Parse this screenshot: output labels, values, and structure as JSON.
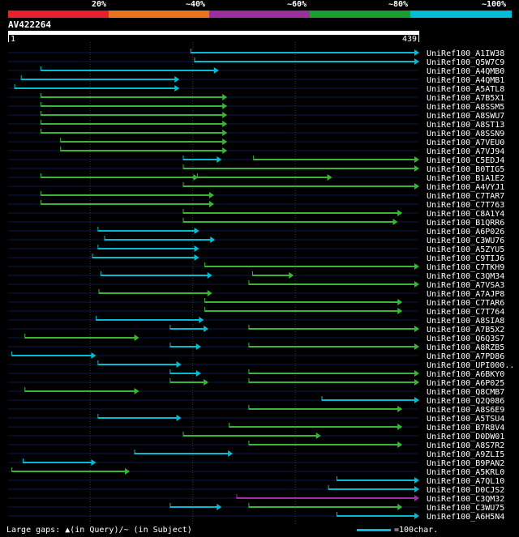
{
  "legend": {
    "items": [
      {
        "label": "20%",
        "color": "#e8202a"
      },
      {
        "label": "~40%",
        "color": "#e87420"
      },
      {
        "label": "~60%",
        "color": "#9c2fa0"
      },
      {
        "label": "~80%",
        "color": "#1aa02a"
      },
      {
        "label": "~100%",
        "color": "#00bcd4"
      }
    ]
  },
  "query": {
    "name": "AV422264",
    "start_label": "1",
    "end_label": "439",
    "length": 439
  },
  "colors": {
    "green": "#3ab53a",
    "cyan": "#00bcd4",
    "purple": "#a030a0",
    "grid": "#3a3a3a",
    "rowline": "#0a1a4a"
  },
  "hits": [
    {
      "name": "UniRef100_A1IW38",
      "segs": [
        {
          "s": 196,
          "e": 439,
          "c": "cyan"
        }
      ]
    },
    {
      "name": "UniRef100_Q5W7C9",
      "segs": [
        {
          "s": 200,
          "e": 439,
          "c": "cyan"
        }
      ]
    },
    {
      "name": "UniRef100_A4QMB0",
      "segs": [
        {
          "s": 36,
          "e": 225,
          "c": "cyan"
        }
      ]
    },
    {
      "name": "UniRef100_A4QMB1",
      "segs": [
        {
          "s": 15,
          "e": 183,
          "c": "cyan"
        }
      ]
    },
    {
      "name": "UniRef100_A5ATL8",
      "segs": [
        {
          "s": 8,
          "e": 183,
          "c": "cyan"
        }
      ]
    },
    {
      "name": "UniRef100_A7B5X1",
      "segs": [
        {
          "s": 36,
          "e": 234,
          "c": "green"
        }
      ]
    },
    {
      "name": "UniRef100_A8SSM5",
      "segs": [
        {
          "s": 36,
          "e": 234,
          "c": "green"
        }
      ]
    },
    {
      "name": "UniRef100_A8SWU7",
      "segs": [
        {
          "s": 36,
          "e": 234,
          "c": "green"
        }
      ]
    },
    {
      "name": "UniRef100_A8ST13",
      "segs": [
        {
          "s": 36,
          "e": 234,
          "c": "green"
        }
      ]
    },
    {
      "name": "UniRef100_A8SSN9",
      "segs": [
        {
          "s": 36,
          "e": 234,
          "c": "green"
        }
      ]
    },
    {
      "name": "UniRef100_A7VEU0",
      "segs": [
        {
          "s": 57,
          "e": 234,
          "c": "green"
        }
      ]
    },
    {
      "name": "UniRef100_A7VJ94",
      "segs": [
        {
          "s": 57,
          "e": 234,
          "c": "green"
        }
      ]
    },
    {
      "name": "UniRef100_C5EDJ4",
      "segs": [
        {
          "s": 188,
          "e": 228,
          "c": "cyan"
        },
        {
          "s": 263,
          "e": 439,
          "c": "green"
        }
      ]
    },
    {
      "name": "UniRef100_B0TIG5",
      "segs": [
        {
          "s": 188,
          "e": 439,
          "c": "green"
        }
      ]
    },
    {
      "name": "UniRef100_B1A1E2",
      "segs": [
        {
          "s": 36,
          "e": 203,
          "c": "green"
        },
        {
          "s": 203,
          "e": 346,
          "c": "green"
        }
      ]
    },
    {
      "name": "UniRef100_A4VYJ1",
      "segs": [
        {
          "s": 188,
          "e": 439,
          "c": "green"
        }
      ]
    },
    {
      "name": "UniRef100_C7TAR7",
      "segs": [
        {
          "s": 36,
          "e": 220,
          "c": "green"
        }
      ]
    },
    {
      "name": "UniRef100_C7T763",
      "segs": [
        {
          "s": 36,
          "e": 220,
          "c": "green"
        }
      ]
    },
    {
      "name": "UniRef100_C8A1Y4",
      "segs": [
        {
          "s": 188,
          "e": 421,
          "c": "green"
        }
      ]
    },
    {
      "name": "UniRef100_B1QRR6",
      "segs": [
        {
          "s": 188,
          "e": 416,
          "c": "green"
        }
      ]
    },
    {
      "name": "UniRef100_A6P026",
      "segs": [
        {
          "s": 97,
          "e": 204,
          "c": "cyan"
        }
      ]
    },
    {
      "name": "UniRef100_C3WU76",
      "segs": [
        {
          "s": 104,
          "e": 221,
          "c": "cyan"
        }
      ]
    },
    {
      "name": "UniRef100_A5ZYU5",
      "segs": [
        {
          "s": 97,
          "e": 204,
          "c": "cyan"
        }
      ]
    },
    {
      "name": "UniRef100_C9TIJ6",
      "segs": [
        {
          "s": 91,
          "e": 204,
          "c": "cyan"
        }
      ]
    },
    {
      "name": "UniRef100_C7TKH9",
      "segs": [
        {
          "s": 211,
          "e": 439,
          "c": "green"
        }
      ]
    },
    {
      "name": "UniRef100_C3QM34",
      "segs": [
        {
          "s": 100,
          "e": 218,
          "c": "cyan"
        },
        {
          "s": 262,
          "e": 305,
          "c": "green"
        }
      ]
    },
    {
      "name": "UniRef100_A7VSA3",
      "segs": [
        {
          "s": 258,
          "e": 439,
          "c": "green"
        }
      ]
    },
    {
      "name": "UniRef100_A7AJP8",
      "segs": [
        {
          "s": 98,
          "e": 218,
          "c": "green"
        }
      ]
    },
    {
      "name": "UniRef100_C7TAR6",
      "segs": [
        {
          "s": 211,
          "e": 421,
          "c": "green"
        }
      ]
    },
    {
      "name": "UniRef100_C7T764",
      "segs": [
        {
          "s": 211,
          "e": 421,
          "c": "green"
        }
      ]
    },
    {
      "name": "UniRef100_A8SIA8",
      "segs": [
        {
          "s": 95,
          "e": 209,
          "c": "cyan"
        }
      ]
    },
    {
      "name": "UniRef100_A7B5X2",
      "segs": [
        {
          "s": 174,
          "e": 214,
          "c": "cyan"
        },
        {
          "s": 258,
          "e": 439,
          "c": "green"
        }
      ]
    },
    {
      "name": "UniRef100_Q6Q3S7",
      "segs": [
        {
          "s": 19,
          "e": 140,
          "c": "green"
        }
      ]
    },
    {
      "name": "UniRef100_A8RZB5",
      "segs": [
        {
          "s": 174,
          "e": 206,
          "c": "cyan"
        },
        {
          "s": 258,
          "e": 439,
          "c": "green"
        }
      ]
    },
    {
      "name": "UniRef100_A7PD86",
      "segs": [
        {
          "s": 5,
          "e": 94,
          "c": "cyan"
        }
      ]
    },
    {
      "name": "UniRef100_UPI000..",
      "segs": [
        {
          "s": 97,
          "e": 185,
          "c": "cyan"
        }
      ]
    },
    {
      "name": "UniRef100_A6BKY0",
      "segs": [
        {
          "s": 174,
          "e": 206,
          "c": "cyan"
        },
        {
          "s": 258,
          "e": 439,
          "c": "green"
        }
      ]
    },
    {
      "name": "UniRef100_A6P025",
      "segs": [
        {
          "s": 174,
          "e": 214,
          "c": "green"
        },
        {
          "s": 258,
          "e": 439,
          "c": "green"
        }
      ]
    },
    {
      "name": "UniRef100_Q8CMB7",
      "segs": [
        {
          "s": 19,
          "e": 140,
          "c": "green"
        }
      ]
    },
    {
      "name": "UniRef100_Q2Q086",
      "segs": [
        {
          "s": 336,
          "e": 439,
          "c": "cyan"
        }
      ]
    },
    {
      "name": "UniRef100_A8S6E9",
      "segs": [
        {
          "s": 258,
          "e": 421,
          "c": "green"
        }
      ]
    },
    {
      "name": "UniRef100_A5TSU4",
      "segs": [
        {
          "s": 97,
          "e": 185,
          "c": "cyan"
        }
      ]
    },
    {
      "name": "UniRef100_B7R8V4",
      "segs": [
        {
          "s": 237,
          "e": 421,
          "c": "green"
        }
      ]
    },
    {
      "name": "UniRef100_D0DW01",
      "segs": [
        {
          "s": 188,
          "e": 334,
          "c": "green"
        }
      ]
    },
    {
      "name": "UniRef100_A8S7R2",
      "segs": [
        {
          "s": 258,
          "e": 421,
          "c": "green"
        }
      ]
    },
    {
      "name": "UniRef100_A9ZLI5",
      "segs": [
        {
          "s": 136,
          "e": 240,
          "c": "cyan"
        }
      ]
    },
    {
      "name": "UniRef100_B9PAN2",
      "segs": [
        {
          "s": 17,
          "e": 94,
          "c": "cyan"
        }
      ]
    },
    {
      "name": "UniRef100_A5KRL0",
      "segs": [
        {
          "s": 5,
          "e": 130,
          "c": "green"
        }
      ]
    },
    {
      "name": "UniRef100_A7QL10",
      "segs": [
        {
          "s": 352,
          "e": 439,
          "c": "cyan"
        }
      ]
    },
    {
      "name": "UniRef100_D0CJS2",
      "segs": [
        {
          "s": 343,
          "e": 439,
          "c": "cyan"
        }
      ]
    },
    {
      "name": "UniRef100_C3QM32",
      "segs": [
        {
          "s": 245,
          "e": 439,
          "c": "purple"
        }
      ]
    },
    {
      "name": "UniRef100_C3WU75",
      "segs": [
        {
          "s": 174,
          "e": 228,
          "c": "cyan"
        },
        {
          "s": 258,
          "e": 421,
          "c": "green"
        }
      ]
    },
    {
      "name": "UniRef100_A6H5N4",
      "segs": [
        {
          "s": 352,
          "e": 439,
          "c": "cyan"
        }
      ]
    }
  ],
  "footer": {
    "gaps_text": "Large gaps: ▲(in Query)/~ (in Subject)",
    "scale_text": "=100char."
  }
}
